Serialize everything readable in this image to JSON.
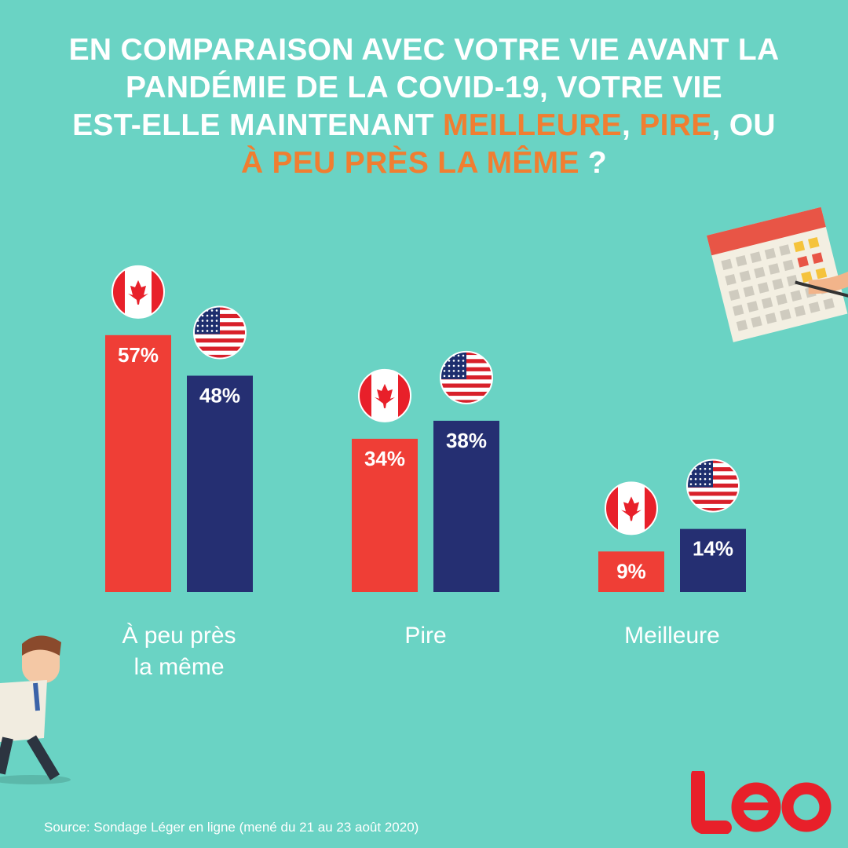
{
  "title": {
    "line1": "EN COMPARAISON AVEC VOTRE VIE AVANT LA",
    "line2": "PANDÉMIE DE LA COVID-19, VOTRE VIE",
    "line3_a": "EST-ELLE MAINTENANT ",
    "line3_b": "MEILLEURE",
    "line3_c": ", ",
    "line3_d": "PIRE",
    "line3_e": ", OU",
    "line4_a": "À PEU PRÈS LA MÊME",
    "line4_b": " ?"
  },
  "chart_data": {
    "type": "bar",
    "categories": [
      "À peu près la même",
      "Pire",
      "Meilleure"
    ],
    "series": [
      {
        "flag": "canada",
        "color": "#ef3e36",
        "values": [
          57,
          34,
          9
        ],
        "labels": [
          "57%",
          "34%",
          "9%"
        ]
      },
      {
        "flag": "usa",
        "color": "#252f72",
        "values": [
          48,
          38,
          14
        ],
        "labels": [
          "48%",
          "38%",
          "14%"
        ]
      }
    ],
    "ylim": [
      0,
      60
    ]
  },
  "categories_display": [
    [
      "À peu près",
      "la même"
    ],
    [
      "Pire"
    ],
    [
      "Meilleure"
    ]
  ],
  "colors": {
    "background": "#6ad3c4",
    "accent": "#f07e31",
    "logo": "#e8202a"
  },
  "source": "Source: Sondage Léger en ligne (mené du 21 au 23 août 2020)",
  "logo": "Léo"
}
